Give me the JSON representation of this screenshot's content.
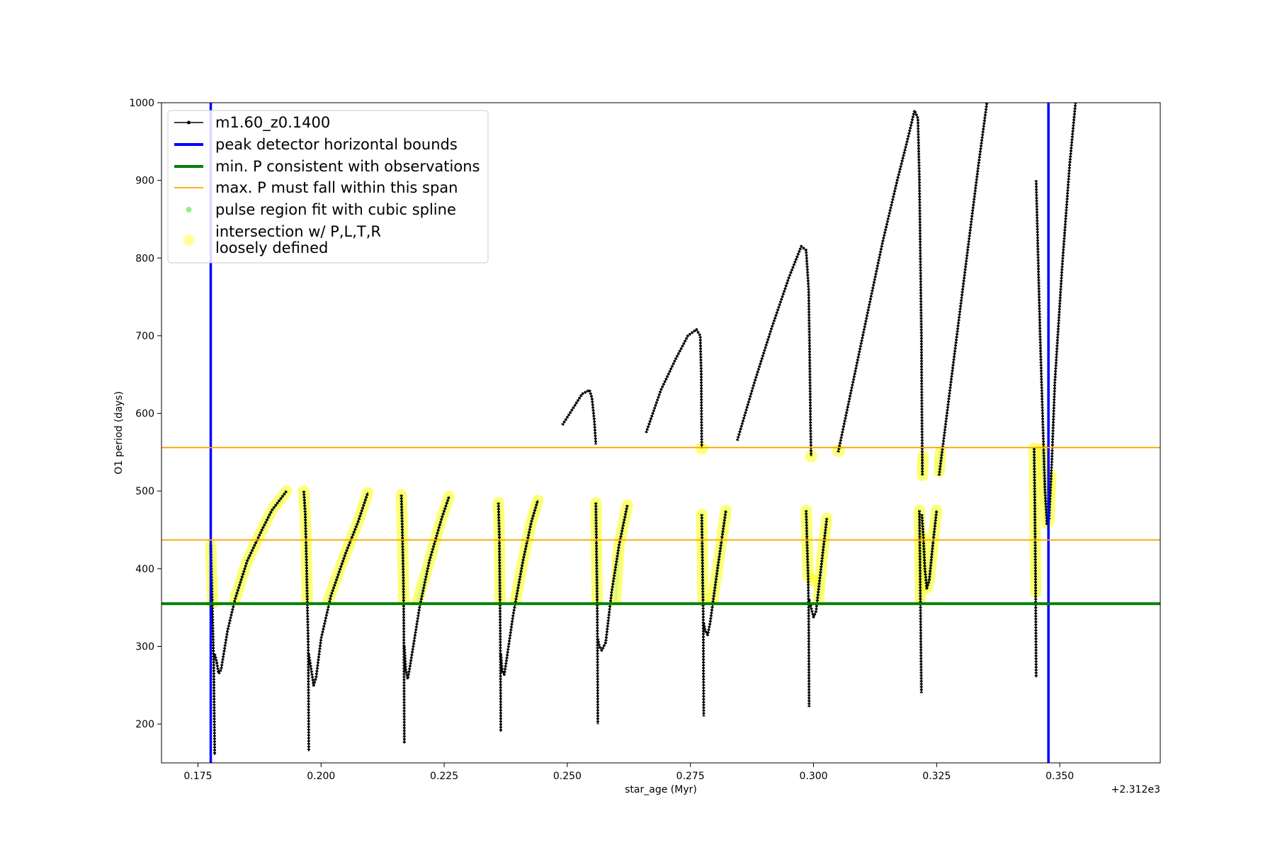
{
  "chart_data": {
    "type": "line",
    "xlabel": "star_age (Myr)",
    "ylabel": "O1 period (days)",
    "x_offset_label": "+2.312e3",
    "xlim": [
      0.1676,
      0.3704
    ],
    "ylim": [
      150,
      1000
    ],
    "xticks": [
      0.175,
      0.2,
      0.225,
      0.25,
      0.275,
      0.3,
      0.325,
      0.35
    ],
    "xtick_labels": [
      "0.175",
      "0.200",
      "0.225",
      "0.250",
      "0.275",
      "0.300",
      "0.325",
      "0.350"
    ],
    "yticks": [
      200,
      300,
      400,
      500,
      600,
      700,
      800,
      900,
      1000
    ],
    "ytick_labels": [
      "200",
      "300",
      "400",
      "500",
      "600",
      "700",
      "800",
      "900",
      "1000"
    ],
    "legend": {
      "placement": "upper-left",
      "entries": [
        {
          "label": "m1.60_z0.1400",
          "style": "line-marker",
          "color": "#000000"
        },
        {
          "label": "peak detector horizontal bounds",
          "style": "thick-line",
          "color": "#0000ff"
        },
        {
          "label": "min. P consistent with observations",
          "style": "thick-line",
          "color": "#008000"
        },
        {
          "label": "max. P must fall within this span",
          "style": "thin-line",
          "color": "#ffa500"
        },
        {
          "label": "pulse region fit with cubic spline",
          "style": "dot",
          "color": "#90ee90"
        },
        {
          "label": "intersection w/ P,L,T,R\nloosely defined",
          "style": "big-dot",
          "color": "#ffff99"
        }
      ]
    },
    "reference_lines": {
      "vertical_blue_x": [
        0.1776,
        0.3477
      ],
      "horizontal_green_y": 355,
      "horizontal_orange_y": [
        437,
        556
      ]
    },
    "series": [
      {
        "name": "m1.60_z0.1400",
        "color": "#000000"
      },
      {
        "name": "pulse region fit with cubic spline",
        "color": "#90ee90"
      },
      {
        "name": "intersection w/ P,L,T,R loosely defined",
        "color": "#ffff00"
      }
    ],
    "track_segments": [
      [
        [
          0.1776,
          430
        ],
        [
          0.1778,
          380
        ],
        [
          0.178,
          330
        ],
        [
          0.1782,
          280
        ],
        [
          0.1784,
          160
        ]
      ],
      [
        [
          0.1784,
          290
        ],
        [
          0.1788,
          280
        ],
        [
          0.1792,
          265
        ],
        [
          0.1797,
          270
        ],
        [
          0.181,
          320
        ],
        [
          0.1825,
          360
        ],
        [
          0.185,
          410
        ],
        [
          0.188,
          450
        ],
        [
          0.19,
          475
        ],
        [
          0.193,
          500
        ]
      ],
      [
        [
          0.1965,
          500
        ],
        [
          0.1968,
          470
        ],
        [
          0.197,
          420
        ],
        [
          0.1972,
          360
        ],
        [
          0.1974,
          300
        ],
        [
          0.1975,
          165
        ]
      ],
      [
        [
          0.1975,
          290
        ],
        [
          0.198,
          270
        ],
        [
          0.1985,
          250
        ],
        [
          0.199,
          260
        ],
        [
          0.2,
          310
        ],
        [
          0.202,
          365
        ],
        [
          0.205,
          420
        ],
        [
          0.2075,
          460
        ],
        [
          0.2095,
          498
        ]
      ],
      [
        [
          0.2163,
          495
        ],
        [
          0.2165,
          450
        ],
        [
          0.2167,
          390
        ],
        [
          0.2168,
          330
        ],
        [
          0.2169,
          175
        ]
      ],
      [
        [
          0.2169,
          300
        ],
        [
          0.2172,
          270
        ],
        [
          0.2176,
          258
        ],
        [
          0.218,
          272
        ],
        [
          0.22,
          350
        ],
        [
          0.222,
          410
        ],
        [
          0.2245,
          465
        ],
        [
          0.226,
          493
        ]
      ],
      [
        [
          0.236,
          485
        ],
        [
          0.2362,
          440
        ],
        [
          0.2363,
          380
        ],
        [
          0.2364,
          320
        ],
        [
          0.2365,
          190
        ]
      ],
      [
        [
          0.2365,
          290
        ],
        [
          0.2368,
          268
        ],
        [
          0.2372,
          264
        ],
        [
          0.2376,
          280
        ],
        [
          0.239,
          340
        ],
        [
          0.241,
          410
        ],
        [
          0.2427,
          460
        ],
        [
          0.244,
          488
        ]
      ],
      [
        [
          0.249,
          585
        ],
        [
          0.251,
          605
        ],
        [
          0.253,
          625
        ],
        [
          0.2545,
          630
        ],
        [
          0.255,
          620
        ],
        [
          0.2555,
          590
        ],
        [
          0.2558,
          560
        ]
      ],
      [
        [
          0.2558,
          485
        ],
        [
          0.2559,
          440
        ],
        [
          0.256,
          390
        ],
        [
          0.2561,
          340
        ],
        [
          0.2562,
          200
        ]
      ],
      [
        [
          0.2562,
          310
        ],
        [
          0.2565,
          300
        ],
        [
          0.257,
          295
        ],
        [
          0.2578,
          305
        ],
        [
          0.259,
          370
        ],
        [
          0.2605,
          430
        ],
        [
          0.2622,
          482
        ]
      ],
      [
        [
          0.266,
          575
        ],
        [
          0.269,
          630
        ],
        [
          0.272,
          670
        ],
        [
          0.2745,
          700
        ],
        [
          0.2762,
          708
        ],
        [
          0.277,
          700
        ],
        [
          0.2772,
          650
        ],
        [
          0.2773,
          555
        ]
      ],
      [
        [
          0.2773,
          470
        ],
        [
          0.2774,
          430
        ],
        [
          0.2775,
          380
        ],
        [
          0.2776,
          340
        ],
        [
          0.2777,
          210
        ]
      ],
      [
        [
          0.2777,
          330
        ],
        [
          0.278,
          320
        ],
        [
          0.2785,
          315
        ],
        [
          0.279,
          330
        ],
        [
          0.2805,
          400
        ],
        [
          0.2822,
          475
        ]
      ],
      [
        [
          0.2845,
          565
        ],
        [
          0.288,
          640
        ],
        [
          0.2915,
          710
        ],
        [
          0.295,
          775
        ],
        [
          0.2975,
          815
        ],
        [
          0.2985,
          810
        ],
        [
          0.299,
          760
        ],
        [
          0.2992,
          680
        ],
        [
          0.2994,
          580
        ],
        [
          0.2995,
          545
        ]
      ],
      [
        [
          0.2985,
          475
        ],
        [
          0.2987,
          430
        ],
        [
          0.2989,
          390
        ],
        [
          0.299,
          350
        ],
        [
          0.2991,
          222
        ]
      ],
      [
        [
          0.2991,
          360
        ],
        [
          0.2995,
          350
        ],
        [
          0.3,
          338
        ],
        [
          0.3005,
          345
        ],
        [
          0.3015,
          400
        ],
        [
          0.3027,
          465
        ]
      ],
      [
        [
          0.305,
          550
        ],
        [
          0.308,
          640
        ],
        [
          0.311,
          730
        ],
        [
          0.314,
          820
        ],
        [
          0.317,
          900
        ],
        [
          0.319,
          950
        ],
        [
          0.3205,
          990
        ],
        [
          0.3212,
          980
        ],
        [
          0.3215,
          900
        ],
        [
          0.3217,
          800
        ],
        [
          0.3219,
          700
        ],
        [
          0.322,
          600
        ],
        [
          0.3221,
          520
        ]
      ],
      [
        [
          0.3215,
          475
        ],
        [
          0.3216,
          420
        ],
        [
          0.3217,
          360
        ],
        [
          0.3218,
          300
        ],
        [
          0.3219,
          240
        ]
      ],
      [
        [
          0.322,
          470
        ],
        [
          0.3223,
          440
        ],
        [
          0.3226,
          400
        ],
        [
          0.323,
          375
        ],
        [
          0.3235,
          385
        ],
        [
          0.3242,
          430
        ],
        [
          0.325,
          475
        ]
      ],
      [
        [
          0.3255,
          520
        ],
        [
          0.3275,
          620
        ],
        [
          0.3295,
          720
        ],
        [
          0.3315,
          820
        ],
        [
          0.3335,
          920
        ],
        [
          0.3352,
          1000
        ]
      ],
      [
        [
          0.3448,
          555
        ],
        [
          0.3449,
          500
        ],
        [
          0.345,
          440
        ],
        [
          0.3451,
          370
        ],
        [
          0.3452,
          260
        ]
      ],
      [
        [
          0.3452,
          900
        ],
        [
          0.3456,
          800
        ],
        [
          0.346,
          700
        ],
        [
          0.3465,
          600
        ],
        [
          0.347,
          500
        ],
        [
          0.3474,
          458
        ],
        [
          0.3478,
          462
        ],
        [
          0.3484,
          540
        ],
        [
          0.349,
          640
        ],
        [
          0.3505,
          790
        ],
        [
          0.352,
          920
        ],
        [
          0.3532,
          1000
        ]
      ]
    ],
    "yellow_segments": [
      [
        [
          0.1776,
          430
        ],
        [
          0.1778,
          390
        ],
        [
          0.178,
          355
        ]
      ],
      [
        [
          0.1825,
          360
        ],
        [
          0.185,
          410
        ],
        [
          0.188,
          450
        ],
        [
          0.19,
          475
        ],
        [
          0.193,
          500
        ]
      ],
      [
        [
          0.1965,
          500
        ],
        [
          0.1968,
          470
        ],
        [
          0.197,
          420
        ],
        [
          0.1972,
          360
        ]
      ],
      [
        [
          0.2015,
          360
        ],
        [
          0.205,
          420
        ],
        [
          0.2075,
          460
        ],
        [
          0.2095,
          498
        ]
      ],
      [
        [
          0.2163,
          495
        ],
        [
          0.2165,
          450
        ],
        [
          0.2167,
          390
        ],
        [
          0.2168,
          360
        ]
      ],
      [
        [
          0.2197,
          360
        ],
        [
          0.222,
          410
        ],
        [
          0.2245,
          465
        ],
        [
          0.226,
          493
        ]
      ],
      [
        [
          0.236,
          485
        ],
        [
          0.2362,
          440
        ],
        [
          0.2363,
          380
        ],
        [
          0.2364,
          360
        ]
      ],
      [
        [
          0.2395,
          360
        ],
        [
          0.241,
          410
        ],
        [
          0.2427,
          460
        ],
        [
          0.244,
          488
        ]
      ],
      [
        [
          0.2558,
          485
        ],
        [
          0.2559,
          440
        ],
        [
          0.256,
          390
        ],
        [
          0.2561,
          360
        ]
      ],
      [
        [
          0.2598,
          360
        ],
        [
          0.2605,
          430
        ],
        [
          0.2622,
          482
        ]
      ],
      [
        [
          0.2773,
          555
        ]
      ],
      [
        [
          0.2773,
          470
        ],
        [
          0.2774,
          430
        ],
        [
          0.2775,
          380
        ],
        [
          0.2776,
          360
        ]
      ],
      [
        [
          0.2795,
          360
        ],
        [
          0.2805,
          400
        ],
        [
          0.2822,
          475
        ]
      ],
      [
        [
          0.2995,
          545
        ]
      ],
      [
        [
          0.2985,
          475
        ],
        [
          0.2987,
          430
        ],
        [
          0.2989,
          390
        ]
      ],
      [
        [
          0.2999,
          385
        ]
      ],
      [
        [
          0.301,
          360
        ],
        [
          0.3015,
          400
        ],
        [
          0.3027,
          465
        ]
      ],
      [
        [
          0.3051,
          552
        ]
      ],
      [
        [
          0.3215,
          475
        ],
        [
          0.3216,
          420
        ],
        [
          0.3217,
          360
        ]
      ],
      [
        [
          0.3221,
          520
        ],
        [
          0.3222,
          545
        ]
      ],
      [
        [
          0.3223,
          440
        ],
        [
          0.3226,
          400
        ],
        [
          0.323,
          375
        ],
        [
          0.3235,
          385
        ],
        [
          0.3242,
          430
        ],
        [
          0.325,
          475
        ]
      ],
      [
        [
          0.3255,
          525
        ],
        [
          0.3258,
          550
        ]
      ],
      [
        [
          0.3448,
          555
        ],
        [
          0.3449,
          500
        ],
        [
          0.345,
          440
        ],
        [
          0.3451,
          370
        ]
      ],
      [
        [
          0.3465,
          555
        ],
        [
          0.347,
          500
        ],
        [
          0.3474,
          458
        ],
        [
          0.3478,
          462
        ],
        [
          0.3482,
          520
        ]
      ]
    ]
  }
}
